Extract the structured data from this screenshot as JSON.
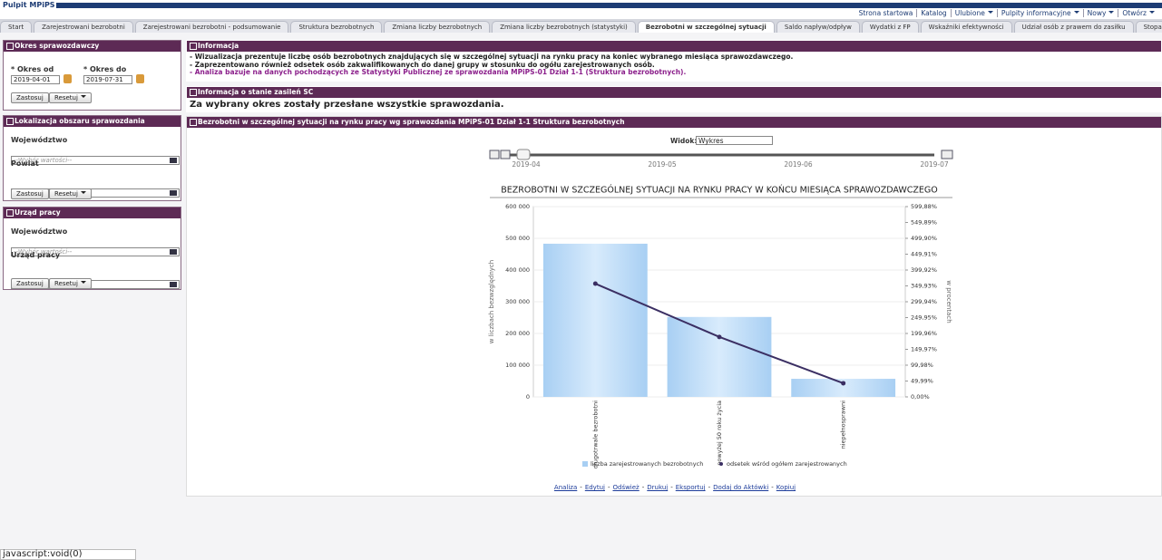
{
  "header": {
    "title": "Pulpit MPiPS",
    "links": [
      "Strona startowa",
      "Katalog",
      "Ulubione",
      "Pulpity informacyjne",
      "Nowy",
      "Otwórz"
    ]
  },
  "tabs": {
    "items": [
      "Start",
      "Zarejestrowani bezrobotni",
      "Zarejestrowani bezrobotni - podsumowanie",
      "Struktura bezrobotnych",
      "Zmiana liczby bezrobotnych",
      "Zmiana liczby bezrobotnych (statystyki)",
      "Bezrobotni w szczególnej sytuacji",
      "Saldo napływ/odpływ",
      "Wydatki z FP",
      "Wskaźniki efektywności",
      "Udział osób z prawem do zasiłku",
      "Stopa bezrobocia",
      "Ak"
    ],
    "active": 6
  },
  "filters": [
    {
      "title": "Okres sprawozdawczy",
      "from_label": "* Okres od",
      "to_label": "* Okres do",
      "from": "2019-04-01",
      "to": "2019-07-31",
      "apply": "Zastosuj",
      "reset": "Resetuj"
    },
    {
      "title": "Lokalizacja obszaru sprawozdania",
      "fields": [
        {
          "label": "Województwo",
          "placeholder": "--Wybór wartości--"
        },
        {
          "label": "Powiat",
          "placeholder": "--Wybór wartości--"
        }
      ],
      "apply": "Zastosuj",
      "reset": "Resetuj"
    },
    {
      "title": "Urząd pracy",
      "fields": [
        {
          "label": "Województwo",
          "placeholder": "--Wybór wartości--"
        },
        {
          "label": "Urząd pracy",
          "placeholder": "--Wybór wartości--"
        }
      ],
      "apply": "Zastosuj",
      "reset": "Resetuj"
    }
  ],
  "info": {
    "title": "Informacja",
    "lines": [
      "- Wizualizacja prezentuje liczbę osób bezrobotnych znajdujących się w szczególnej sytuacji na rynku pracy na koniec wybranego miesiąca sprawozdawczego.",
      "- Zaprezentowano również odsetek osób zakwalifikowanych do danej grupy w stosunku do ogółu zarejestrowanych osób."
    ],
    "highlight": "- Analiza bazuje na danych pochodzących ze Statystyki Publicznej ze sprawozdania MPiPS-01 Dział 1-1 (Struktura bezrobotnych)."
  },
  "load_status": {
    "title": "Informacja o stanie zasileń SC",
    "text": "Za wybrany okres zostały przesłane wszystkie sprawozdania."
  },
  "chart_panel": {
    "title": "Bezrobotni w szczególnej sytuacji na rynku pracy wg sprawozdania MPiPS-01 Dział 1-1 Struktura bezrobotnych",
    "view_label": "Widok:",
    "view_value": "Wykres",
    "slider": [
      "2019-04",
      "2019-05",
      "2019-06",
      "2019-07"
    ],
    "links": [
      "Analiza",
      "Edytuj",
      "Odśwież",
      "Drukuj",
      "Eksportuj",
      "Dodaj do Aktówki",
      "Kopiuj"
    ],
    "link_separator": "-"
  },
  "chart_data": {
    "type": "bar",
    "title": "BEZROBOTNI W SZCZEGÓLNEJ SYTUACJI NA RYNKU PRACY W KOŃCU MIESIĄCA SPRAWOZDAWCZEGO",
    "y_label": "w liczbach bezwzględnych",
    "y2_label": "w procentach",
    "categories": [
      "długotrwale bezrobotni",
      "powyżej 50 roku życia",
      "niepełnosprawni"
    ],
    "series": [
      {
        "name": "liczba zarejestrowanych bezrobotnych",
        "color": "#a8cff3",
        "values": [
          483000,
          252000,
          57000
        ]
      },
      {
        "name": "odsetek wśród ogółem zarejestrowanych",
        "color": "#3b2f63",
        "axis": "y2",
        "type": "line",
        "values": [
          357,
          189,
          43
        ]
      }
    ],
    "ylim": [
      0,
      600000
    ],
    "yticks": [
      {
        "value": 0,
        "label": "0"
      },
      {
        "value": 100000,
        "label": "100 000"
      },
      {
        "value": 200000,
        "label": "200 000"
      },
      {
        "value": 300000,
        "label": "300 000"
      },
      {
        "value": 400000,
        "label": "400 000"
      },
      {
        "value": 500000,
        "label": "500 000"
      },
      {
        "value": 600000,
        "label": "600 000"
      }
    ],
    "y2lim": [
      0,
      599.88
    ],
    "y2ticks": [
      {
        "value": 0,
        "label": "0,00%"
      },
      {
        "value": 49.99,
        "label": "49,99%"
      },
      {
        "value": 99.98,
        "label": "99,98%"
      },
      {
        "value": 149.97,
        "label": "149,97%"
      },
      {
        "value": 199.96,
        "label": "199,96%"
      },
      {
        "value": 249.95,
        "label": "249,95%"
      },
      {
        "value": 299.94,
        "label": "299,94%"
      },
      {
        "value": 349.93,
        "label": "349,93%"
      },
      {
        "value": 399.92,
        "label": "399,92%"
      },
      {
        "value": 449.91,
        "label": "449,91%"
      },
      {
        "value": 499.9,
        "label": "499,90%"
      },
      {
        "value": 549.89,
        "label": "549,89%"
      },
      {
        "value": 599.88,
        "label": "599,88%"
      }
    ]
  },
  "status_bar": "javascript:void(0)"
}
